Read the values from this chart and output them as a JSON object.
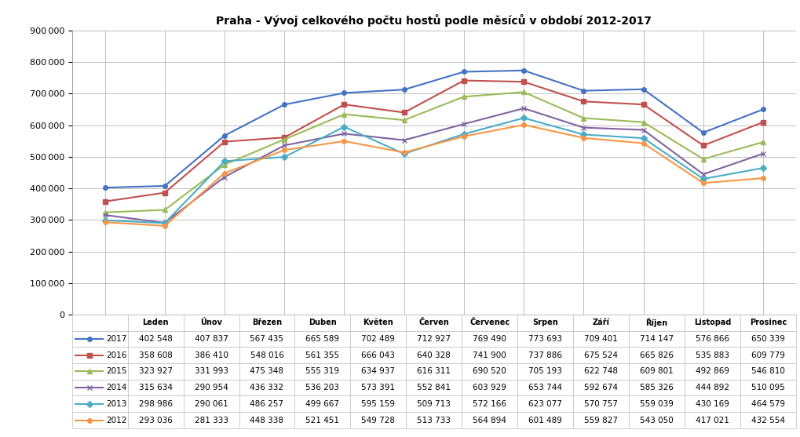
{
  "title": "Praha - Vývoj celkového počtu hostů podle měsíců v období 2012-2017",
  "months": [
    "Leden",
    "Únov",
    "Březen",
    "Duben",
    "Květen",
    "Červen",
    "Červenec",
    "Srpen",
    "Září",
    "Říjen",
    "Listopad",
    "Prosinec"
  ],
  "series": [
    {
      "year": "2017",
      "color": "#4472C4",
      "marker": "o",
      "values": [
        402548,
        407837,
        567435,
        665589,
        702489,
        712927,
        769490,
        773693,
        709401,
        714147,
        576866,
        650339
      ]
    },
    {
      "year": "2016",
      "color": "#C0504D",
      "marker": "s",
      "values": [
        358608,
        386410,
        548016,
        561355,
        666043,
        640328,
        741900,
        737886,
        675524,
        665826,
        535883,
        609779
      ]
    },
    {
      "year": "2015",
      "color": "#9BBB59",
      "marker": "^",
      "values": [
        323927,
        331993,
        475348,
        555319,
        634937,
        616311,
        690520,
        705193,
        622748,
        609801,
        492869,
        546810
      ]
    },
    {
      "year": "2014",
      "color": "#8064A2",
      "marker": "x",
      "values": [
        315634,
        290954,
        436332,
        536203,
        573391,
        552841,
        603929,
        653744,
        592674,
        585326,
        444892,
        510095
      ]
    },
    {
      "year": "2013",
      "color": "#4BACC6",
      "marker": "D",
      "values": [
        298986,
        290061,
        486257,
        499667,
        595159,
        509713,
        572166,
        623077,
        570757,
        559039,
        430169,
        464579
      ]
    },
    {
      "year": "2012",
      "color": "#F79646",
      "marker": "o",
      "values": [
        293036,
        281333,
        448338,
        521451,
        549728,
        513733,
        564894,
        601489,
        559827,
        543050,
        417021,
        432554
      ]
    }
  ],
  "ylim": [
    0,
    900000
  ],
  "yticks": [
    0,
    100000,
    200000,
    300000,
    400000,
    500000,
    600000,
    700000,
    800000,
    900000
  ],
  "background_color": "#FFFFFF",
  "grid_color": "#C0C0C0"
}
